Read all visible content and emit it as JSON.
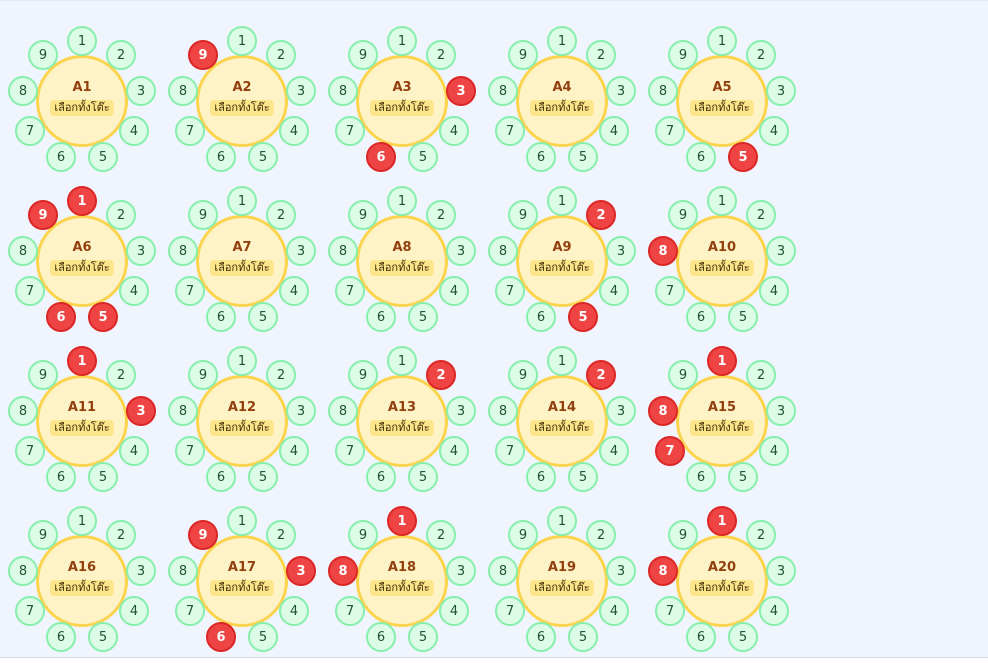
{
  "select_all_label": "เลือกทั้งโต๊ะ",
  "seat_labels": [
    "1",
    "2",
    "3",
    "4",
    "5",
    "6",
    "7",
    "8",
    "9"
  ],
  "colors": {
    "table_fill": "#fef3c7",
    "table_border": "#fcd34d",
    "seat_available": "#dcfce7",
    "seat_available_border": "#86efac",
    "seat_taken": "#ef4444",
    "background": "#eff4fd"
  },
  "tables": [
    {
      "name": "A1",
      "taken": []
    },
    {
      "name": "A2",
      "taken": [
        9
      ]
    },
    {
      "name": "A3",
      "taken": [
        3,
        6
      ]
    },
    {
      "name": "A4",
      "taken": []
    },
    {
      "name": "A5",
      "taken": [
        5
      ]
    },
    {
      "name": "A6",
      "taken": [
        1,
        5,
        6,
        9
      ]
    },
    {
      "name": "A7",
      "taken": []
    },
    {
      "name": "A8",
      "taken": []
    },
    {
      "name": "A9",
      "taken": [
        2,
        5
      ]
    },
    {
      "name": "A10",
      "taken": [
        8
      ]
    },
    {
      "name": "A11",
      "taken": [
        1,
        3
      ]
    },
    {
      "name": "A12",
      "taken": []
    },
    {
      "name": "A13",
      "taken": [
        2
      ]
    },
    {
      "name": "A14",
      "taken": [
        2
      ]
    },
    {
      "name": "A15",
      "taken": [
        1,
        7,
        8
      ]
    },
    {
      "name": "A16",
      "taken": []
    },
    {
      "name": "A17",
      "taken": [
        3,
        6,
        9
      ]
    },
    {
      "name": "A18",
      "taken": [
        1,
        8
      ]
    },
    {
      "name": "A19",
      "taken": []
    },
    {
      "name": "A20",
      "taken": [
        1,
        8
      ]
    }
  ]
}
